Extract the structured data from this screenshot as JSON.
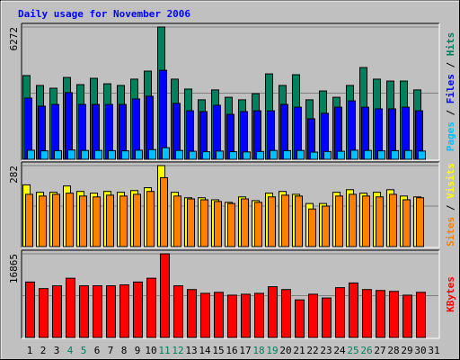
{
  "chart_data": [
    {
      "type": "bar",
      "title": "Daily usage for November 2006",
      "title_color": "#0000ff",
      "ylim": [
        0,
        6272
      ],
      "yticks": [
        6272
      ],
      "legend_separator": " / ",
      "series": [
        {
          "name": "Hits",
          "color": "#00805c",
          "values": [
            3970,
            3500,
            3370,
            3880,
            3540,
            3840,
            3580,
            3500,
            3800,
            4180,
            6272,
            3800,
            3330,
            2820,
            3290,
            2940,
            2820,
            3110,
            4050,
            3500,
            4010,
            2820,
            3240,
            2940,
            3500,
            4350,
            3800,
            3710,
            3710,
            3290,
            null
          ]
        },
        {
          "name": "Files",
          "color": "#0000ff",
          "values": [
            2900,
            2520,
            2600,
            3160,
            2600,
            2600,
            2600,
            2600,
            2860,
            2990,
            4220,
            2650,
            2300,
            2260,
            2560,
            2130,
            2260,
            2300,
            2300,
            2600,
            2470,
            1920,
            2180,
            2470,
            2770,
            2470,
            2390,
            2390,
            2470,
            2300,
            null
          ]
        },
        {
          "name": "Pages",
          "color": "#00c0ff",
          "values": [
            430,
            400,
            410,
            440,
            420,
            420,
            410,
            400,
            430,
            460,
            550,
            420,
            380,
            360,
            390,
            360,
            350,
            370,
            420,
            410,
            420,
            340,
            370,
            380,
            430,
            420,
            400,
            410,
            420,
            390,
            null
          ]
        }
      ]
    },
    {
      "type": "bar",
      "ylim": [
        0,
        282
      ],
      "yticks": [
        282
      ],
      "legend_separator": " / ",
      "series": [
        {
          "name": "Visits",
          "color": "#ffff00",
          "values": [
            215,
            189,
            189,
            211,
            192,
            186,
            192,
            189,
            195,
            205,
            282,
            189,
            170,
            170,
            163,
            154,
            173,
            160,
            186,
            192,
            182,
            150,
            150,
            189,
            198,
            186,
            189,
            198,
            176,
            173,
            null
          ]
        },
        {
          "name": "Sites",
          "color": "#ff8000",
          "values": [
            182,
            176,
            182,
            186,
            176,
            173,
            179,
            176,
            182,
            192,
            240,
            176,
            166,
            163,
            157,
            150,
            166,
            154,
            173,
            179,
            176,
            131,
            141,
            176,
            182,
            176,
            173,
            182,
            163,
            170,
            null
          ]
        }
      ]
    },
    {
      "type": "bar",
      "ylim": [
        0,
        16865
      ],
      "yticks": [
        16865
      ],
      "categories": [
        "1",
        "2",
        "3",
        "4",
        "5",
        "6",
        "7",
        "8",
        "9",
        "10",
        "11",
        "12",
        "13",
        "14",
        "15",
        "16",
        "17",
        "18",
        "19",
        "20",
        "21",
        "22",
        "23",
        "24",
        "25",
        "26",
        "27",
        "28",
        "29",
        "30",
        "31"
      ],
      "category_colors": [
        "#000000",
        "#000000",
        "#000000",
        "#00805c",
        "#00805c",
        "#000000",
        "#000000",
        "#000000",
        "#000000",
        "#000000",
        "#00805c",
        "#00805c",
        "#000000",
        "#000000",
        "#000000",
        "#000000",
        "#000000",
        "#00805c",
        "#00805c",
        "#000000",
        "#000000",
        "#000000",
        "#000000",
        "#000000",
        "#00805c",
        "#00805c",
        "#000000",
        "#000000",
        "#000000",
        "#000000",
        "#000000"
      ],
      "series": [
        {
          "name": "KBytes",
          "color": "#ff0000",
          "values": [
            11180,
            9850,
            10420,
            11940,
            10420,
            10420,
            10420,
            10610,
            11180,
            11940,
            16865,
            10420,
            9660,
            8900,
            9100,
            8530,
            8720,
            8900,
            10230,
            9660,
            7580,
            8720,
            7960,
            10040,
            10990,
            9660,
            9470,
            9290,
            8530,
            9100,
            null
          ]
        }
      ]
    }
  ]
}
